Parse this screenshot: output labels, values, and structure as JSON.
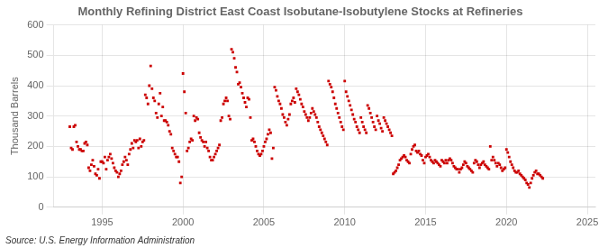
{
  "chart_data": {
    "type": "scatter",
    "title": "Monthly Refining District East Coast Isobutane-Isobutylene Stocks at Refineries",
    "ylabel": "Thousand Barrels",
    "source": "Source: U.S. Energy Information Administration",
    "color": "#cc0000",
    "marker": "square",
    "grid": true,
    "xlim": [
      1992.0,
      2025.5
    ],
    "ylim": [
      0,
      600
    ],
    "xticks": [
      1995,
      2000,
      2005,
      2010,
      2015,
      2020,
      2025
    ],
    "yticks": [
      0,
      100,
      200,
      300,
      400,
      500,
      600
    ],
    "x": [
      1993,
      1993.083333333333,
      1993.166666666667,
      1993.25,
      1993.333333333333,
      1993.416666666667,
      1993.5,
      1993.583333333333,
      1993.666666666667,
      1993.75,
      1993.833333333333,
      1993.916666666667,
      1994,
      1994.083333333333,
      1994.166666666667,
      1994.25,
      1994.333333333333,
      1994.416666666667,
      1994.5,
      1994.583333333333,
      1994.666666666667,
      1994.75,
      1994.833333333333,
      1994.916666666667,
      1995,
      1995.083333333333,
      1995.166666666667,
      1995.25,
      1995.333333333333,
      1995.416666666667,
      1995.5,
      1995.583333333333,
      1995.666666666667,
      1995.75,
      1995.833333333333,
      1995.916666666667,
      1996,
      1996.083333333333,
      1996.166666666667,
      1996.25,
      1996.333333333333,
      1996.416666666667,
      1996.5,
      1996.583333333333,
      1996.666666666667,
      1996.75,
      1996.833333333333,
      1996.916666666667,
      1997,
      1997.083333333333,
      1997.166666666667,
      1997.25,
      1997.333333333333,
      1997.416666666667,
      1997.5,
      1997.583333333333,
      1997.666666666667,
      1997.75,
      1997.833333333333,
      1997.916666666667,
      1998,
      1998.083333333333,
      1998.166666666667,
      1998.25,
      1998.333333333333,
      1998.416666666667,
      1998.5,
      1998.583333333333,
      1998.666666666667,
      1998.75,
      1998.833333333333,
      1998.916666666667,
      1999,
      1999.083333333333,
      1999.166666666667,
      1999.25,
      1999.333333333333,
      1999.416666666667,
      1999.5,
      1999.583333333333,
      1999.666666666667,
      1999.75,
      1999.833333333333,
      1999.916666666667,
      2000,
      2000.083333333333,
      2000.166666666667,
      2000.25,
      2000.333333333333,
      2000.416666666667,
      2000.5,
      2000.583333333333,
      2000.666666666667,
      2000.75,
      2000.833333333333,
      2000.916666666667,
      2001,
      2001.083333333333,
      2001.166666666667,
      2001.25,
      2001.333333333333,
      2001.416666666667,
      2001.5,
      2001.583333333333,
      2001.666666666667,
      2001.75,
      2001.833333333333,
      2001.916666666667,
      2002,
      2002.083333333333,
      2002.166666666667,
      2002.25,
      2002.333333333333,
      2002.416666666667,
      2002.5,
      2002.583333333333,
      2002.666666666667,
      2002.75,
      2002.833333333333,
      2002.916666666667,
      2003,
      2003.083333333333,
      2003.166666666667,
      2003.25,
      2003.333333333333,
      2003.416666666667,
      2003.5,
      2003.583333333333,
      2003.666666666667,
      2003.75,
      2003.833333333333,
      2003.916666666667,
      2004,
      2004.083333333333,
      2004.166666666667,
      2004.25,
      2004.333333333333,
      2004.416666666667,
      2004.5,
      2004.583333333333,
      2004.666666666667,
      2004.75,
      2004.833333333333,
      2004.916666666667,
      2005,
      2005.083333333333,
      2005.166666666667,
      2005.25,
      2005.333333333333,
      2005.416666666667,
      2005.5,
      2005.583333333333,
      2005.666666666667,
      2005.75,
      2005.833333333333,
      2005.916666666667,
      2006,
      2006.083333333333,
      2006.166666666667,
      2006.25,
      2006.333333333333,
      2006.416666666667,
      2006.5,
      2006.583333333333,
      2006.666666666667,
      2006.75,
      2006.833333333333,
      2006.916666666667,
      2007,
      2007.083333333333,
      2007.166666666667,
      2007.25,
      2007.333333333333,
      2007.416666666667,
      2007.5,
      2007.583333333333,
      2007.666666666667,
      2007.75,
      2007.833333333333,
      2007.916666666667,
      2008,
      2008.083333333333,
      2008.166666666667,
      2008.25,
      2008.333333333333,
      2008.416666666667,
      2008.5,
      2008.583333333333,
      2008.666666666667,
      2008.75,
      2008.833333333333,
      2008.916666666667,
      2009,
      2009.083333333333,
      2009.166666666667,
      2009.25,
      2009.333333333333,
      2009.416666666667,
      2009.5,
      2009.583333333333,
      2009.666666666667,
      2009.75,
      2009.833333333333,
      2009.916666666667,
      2010,
      2010.083333333333,
      2010.166666666667,
      2010.25,
      2010.333333333333,
      2010.416666666667,
      2010.5,
      2010.583333333333,
      2010.666666666667,
      2010.75,
      2010.833333333333,
      2010.916666666667,
      2011,
      2011.083333333333,
      2011.166666666667,
      2011.25,
      2011.333333333333,
      2011.416666666667,
      2011.5,
      2011.583333333333,
      2011.666666666667,
      2011.75,
      2011.833333333333,
      2011.916666666667,
      2012,
      2012.083333333333,
      2012.166666666667,
      2012.25,
      2012.333333333333,
      2012.416666666667,
      2012.5,
      2012.583333333333,
      2012.666666666667,
      2012.75,
      2012.833333333333,
      2012.916666666667,
      2013,
      2013.083333333333,
      2013.166666666667,
      2013.25,
      2013.333333333333,
      2013.416666666667,
      2013.5,
      2013.583333333333,
      2013.666666666667,
      2013.75,
      2013.833333333333,
      2013.916666666667,
      2014,
      2014.083333333333,
      2014.166666666667,
      2014.25,
      2014.333333333333,
      2014.416666666667,
      2014.5,
      2014.583333333333,
      2014.666666666667,
      2014.75,
      2014.833333333333,
      2014.916666666667,
      2015,
      2015.083333333333,
      2015.166666666667,
      2015.25,
      2015.333333333333,
      2015.416666666667,
      2015.5,
      2015.583333333333,
      2015.666666666667,
      2015.75,
      2015.833333333333,
      2015.916666666667,
      2016,
      2016.083333333333,
      2016.166666666667,
      2016.25,
      2016.333333333333,
      2016.416666666667,
      2016.5,
      2016.583333333333,
      2016.666666666667,
      2016.75,
      2016.833333333333,
      2016.916666666667,
      2017,
      2017.083333333333,
      2017.166666666667,
      2017.25,
      2017.333333333333,
      2017.416666666667,
      2017.5,
      2017.583333333333,
      2017.666666666667,
      2017.75,
      2017.833333333333,
      2017.916666666667,
      2018,
      2018.083333333333,
      2018.166666666667,
      2018.25,
      2018.333333333333,
      2018.416666666667,
      2018.5,
      2018.583333333333,
      2018.666666666667,
      2018.75,
      2018.833333333333,
      2018.916666666667,
      2019,
      2019.083333333333,
      2019.166666666667,
      2019.25,
      2019.333333333333,
      2019.416666666667,
      2019.5,
      2019.583333333333,
      2019.666666666667,
      2019.75,
      2019.833333333333,
      2019.916666666667,
      2020,
      2020.083333333333,
      2020.166666666667,
      2020.25,
      2020.333333333333,
      2020.416666666667,
      2020.5,
      2020.583333333333,
      2020.666666666667,
      2020.75,
      2020.833333333333,
      2020.916666666667,
      2021,
      2021.083333333333,
      2021.166666666667,
      2021.25,
      2021.333333333333,
      2021.416666666667,
      2021.5,
      2021.583333333333,
      2021.666666666667,
      2021.75,
      2021.833333333333,
      2021.916666666667,
      2022,
      2022.083333333333,
      2022.166666666667,
      2022.25
    ],
    "values": [
      265,
      195,
      190,
      265,
      270,
      215,
      200,
      190,
      190,
      185,
      185,
      210,
      215,
      205,
      130,
      120,
      140,
      155,
      135,
      110,
      105,
      125,
      95,
      150,
      150,
      145,
      165,
      125,
      155,
      165,
      175,
      160,
      145,
      130,
      120,
      115,
      100,
      110,
      120,
      140,
      150,
      165,
      155,
      140,
      175,
      190,
      210,
      195,
      220,
      215,
      220,
      195,
      225,
      200,
      215,
      220,
      370,
      360,
      340,
      400,
      465,
      390,
      360,
      350,
      310,
      295,
      340,
      375,
      300,
      330,
      285,
      285,
      280,
      270,
      250,
      240,
      195,
      185,
      175,
      165,
      165,
      150,
      80,
      100,
      440,
      380,
      310,
      185,
      195,
      215,
      225,
      220,
      300,
      285,
      295,
      290,
      245,
      230,
      220,
      215,
      200,
      215,
      195,
      185,
      165,
      155,
      155,
      165,
      175,
      185,
      195,
      205,
      285,
      295,
      340,
      350,
      360,
      350,
      300,
      290,
      520,
      510,
      490,
      460,
      445,
      405,
      410,
      395,
      375,
      360,
      345,
      330,
      360,
      355,
      295,
      220,
      225,
      215,
      200,
      185,
      175,
      170,
      175,
      185,
      200,
      215,
      225,
      240,
      255,
      245,
      160,
      195,
      395,
      385,
      365,
      350,
      340,
      325,
      305,
      295,
      280,
      270,
      290,
      305,
      340,
      350,
      360,
      345,
      390,
      380,
      370,
      355,
      340,
      330,
      315,
      305,
      295,
      285,
      295,
      310,
      325,
      315,
      305,
      295,
      280,
      265,
      255,
      245,
      235,
      225,
      215,
      205,
      415,
      405,
      395,
      380,
      360,
      340,
      325,
      310,
      295,
      280,
      265,
      255,
      415,
      380,
      365,
      350,
      335,
      320,
      305,
      290,
      280,
      265,
      255,
      245,
      295,
      280,
      265,
      255,
      245,
      335,
      325,
      310,
      295,
      280,
      265,
      255,
      300,
      285,
      275,
      260,
      250,
      295,
      285,
      275,
      265,
      255,
      245,
      235,
      110,
      115,
      120,
      130,
      140,
      155,
      160,
      165,
      170,
      165,
      155,
      150,
      145,
      175,
      190,
      200,
      205,
      185,
      180,
      185,
      175,
      170,
      155,
      145,
      165,
      170,
      175,
      165,
      155,
      150,
      145,
      155,
      150,
      145,
      140,
      135,
      155,
      150,
      145,
      155,
      145,
      155,
      160,
      155,
      145,
      135,
      130,
      125,
      125,
      115,
      125,
      130,
      140,
      150,
      145,
      135,
      130,
      125,
      120,
      115,
      145,
      155,
      150,
      140,
      130,
      140,
      145,
      150,
      140,
      135,
      130,
      125,
      200,
      155,
      165,
      155,
      145,
      135,
      145,
      140,
      130,
      120,
      125,
      130,
      190,
      180,
      165,
      150,
      140,
      130,
      120,
      115,
      115,
      120,
      110,
      105,
      100,
      95,
      90,
      80,
      75,
      65,
      80,
      95,
      105,
      115,
      120,
      110,
      110,
      105,
      100,
      95
    ]
  }
}
